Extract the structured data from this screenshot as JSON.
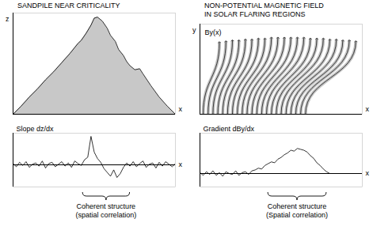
{
  "chart_data": [
    {
      "type": "area",
      "title": "SANDPILE NEAR CRITICALITY",
      "x_label": "x",
      "y_label": "z",
      "color": "#c8c8c8",
      "tick_labels": false,
      "x": [
        0,
        5,
        10,
        15,
        20,
        25,
        30,
        35,
        40,
        42,
        45,
        48,
        50,
        52,
        55,
        58,
        60,
        63,
        65,
        68,
        70,
        72,
        75,
        78,
        80,
        85,
        90,
        95,
        100
      ],
      "values": [
        0,
        8,
        17,
        25,
        34,
        42,
        51,
        60,
        70,
        73,
        80,
        88,
        95,
        96,
        92,
        85,
        78,
        72,
        64,
        58,
        52,
        48,
        44,
        45,
        40,
        28,
        17,
        8,
        0
      ],
      "xlim": [
        0,
        100
      ],
      "ylim": [
        0,
        100
      ],
      "xticks": [],
      "yticks": []
    },
    {
      "type": "vector",
      "title": "NON-POTENTIAL MAGNETIC FIELD\nIN SOLAR FLARING REGIONS",
      "x_label": "x",
      "y_label": "y",
      "annotation": "By(x)",
      "color": "#000000",
      "tick_labels": false,
      "x": [
        12,
        16,
        20,
        24,
        28,
        32,
        36,
        40,
        44,
        48,
        52,
        56,
        60,
        64,
        68,
        72,
        76,
        80,
        84,
        88,
        92,
        96
      ],
      "footpoints": [
        2,
        5,
        8,
        11,
        14,
        17,
        20,
        23,
        26,
        29,
        32,
        35,
        38,
        41,
        44,
        47,
        50,
        53,
        56,
        59,
        62,
        65
      ],
      "values": [
        0.8,
        0.81,
        0.82,
        0.82,
        0.83,
        0.83,
        0.84,
        0.84,
        0.85,
        0.85,
        0.85,
        0.85,
        0.85,
        0.85,
        0.84,
        0.84,
        0.84,
        0.83,
        0.83,
        0.82,
        0.82,
        0.81
      ],
      "xlim": [
        0,
        100
      ],
      "ylim": [
        0,
        1
      ],
      "xticks": [],
      "yticks": []
    },
    {
      "type": "line",
      "x_label": "x",
      "y_label": "Slope dz/dx",
      "color": "#000000",
      "tick_labels": false,
      "annotation": {
        "text": [
          "Coherent structure",
          "(spatial correlation)"
        ],
        "xrange": [
          43,
          72
        ]
      },
      "x": [
        0,
        2,
        4,
        6,
        8,
        10,
        12,
        14,
        16,
        18,
        20,
        22,
        24,
        26,
        28,
        30,
        32,
        34,
        36,
        38,
        40,
        42,
        44,
        46,
        48,
        50,
        52,
        54,
        56,
        58,
        60,
        62,
        64,
        66,
        68,
        70,
        72,
        74,
        76,
        78,
        80,
        82,
        84,
        86,
        88,
        90,
        92,
        94,
        96,
        98,
        100
      ],
      "values": [
        2,
        -3,
        4,
        -1,
        5,
        -4,
        1,
        3,
        -2,
        6,
        -5,
        2,
        4,
        -3,
        1,
        5,
        -2,
        3,
        -4,
        6,
        2,
        -1,
        8,
        12,
        45,
        20,
        10,
        4,
        -6,
        -12,
        -18,
        -8,
        -20,
        -14,
        -4,
        3,
        -2,
        5,
        -3,
        2,
        6,
        -4,
        1,
        3,
        -5,
        4,
        -2,
        5,
        1,
        -3,
        2
      ],
      "xlim": [
        0,
        100
      ],
      "ylim": [
        -35,
        50
      ],
      "xticks": [],
      "yticks": [
        0
      ]
    },
    {
      "type": "line",
      "x_label": "x",
      "y_label": "Gradient dBy/dx",
      "color": "#000000",
      "tick_labels": false,
      "annotation": {
        "text": [
          "Coherent structure",
          "(Spatial correlation)"
        ],
        "xrange": [
          42,
          78
        ]
      },
      "x": [
        0,
        2,
        4,
        6,
        8,
        10,
        12,
        14,
        16,
        18,
        20,
        22,
        24,
        26,
        28,
        30,
        32,
        34,
        36,
        38,
        40,
        42,
        44,
        46,
        48,
        50,
        52,
        54,
        56,
        58,
        60,
        62,
        64,
        66,
        68,
        70,
        72,
        74,
        76,
        78,
        80
      ],
      "values": [
        1,
        -2,
        2,
        -1,
        3,
        -2,
        1,
        -3,
        2,
        0,
        -1,
        3,
        -2,
        1,
        2,
        -1,
        3,
        4,
        6,
        5,
        9,
        11,
        13,
        12,
        16,
        18,
        21,
        23,
        26,
        25,
        28,
        27,
        26,
        24,
        20,
        17,
        12,
        9,
        5,
        2,
        0
      ],
      "xlim": [
        0,
        100
      ],
      "ylim": [
        -15,
        45
      ],
      "xticks": [],
      "yticks": [
        0
      ]
    }
  ]
}
